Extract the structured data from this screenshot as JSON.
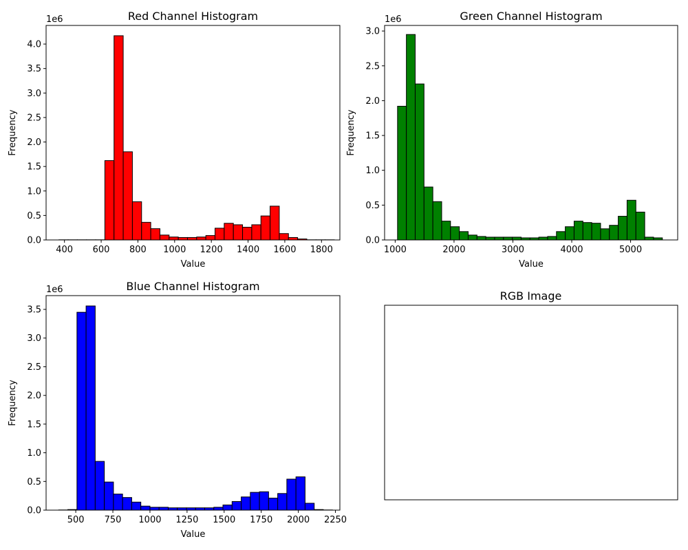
{
  "chart_data": [
    {
      "type": "bar",
      "title": "Red Channel Histogram",
      "xlabel": "Value",
      "ylabel": "Frequency",
      "offset_label": "1e6",
      "color": "#ff0000",
      "edge_color": "#000000",
      "xlim": [
        300,
        1900
      ],
      "ylim": [
        0,
        4.38
      ],
      "xticks": [
        400,
        600,
        800,
        1000,
        1200,
        1400,
        1600,
        1800
      ],
      "yticks": [
        0.0,
        0.5,
        1.0,
        1.5,
        2.0,
        2.5,
        3.0,
        3.5,
        4.0
      ],
      "bin_edges": [
        370,
        420,
        470,
        520,
        570,
        620,
        670,
        720,
        770,
        820,
        870,
        920,
        970,
        1020,
        1070,
        1120,
        1170,
        1220,
        1270,
        1320,
        1370,
        1420,
        1470,
        1520,
        1570,
        1620,
        1670,
        1720,
        1770,
        1820,
        1870
      ],
      "values": [
        0.003,
        0.003,
        0.003,
        0.003,
        0.003,
        1.62,
        4.17,
        1.8,
        0.78,
        0.36,
        0.23,
        0.1,
        0.06,
        0.05,
        0.05,
        0.06,
        0.09,
        0.24,
        0.34,
        0.31,
        0.26,
        0.31,
        0.49,
        0.69,
        0.13,
        0.05,
        0.02,
        0.003,
        0.003,
        0.003
      ]
    },
    {
      "type": "bar",
      "title": "Green Channel Histogram",
      "xlabel": "Value",
      "ylabel": "Frequency",
      "offset_label": "1e6",
      "color": "#008000",
      "edge_color": "#000000",
      "xlim": [
        820,
        5800
      ],
      "ylim": [
        0,
        3.08
      ],
      "xticks": [
        1000,
        2000,
        3000,
        4000,
        5000
      ],
      "yticks": [
        0.0,
        0.5,
        1.0,
        1.5,
        2.0,
        2.5,
        3.0
      ],
      "bin_edges": [
        1040,
        1190,
        1340,
        1490,
        1640,
        1790,
        1940,
        2090,
        2240,
        2390,
        2540,
        2690,
        2840,
        2990,
        3140,
        3290,
        3440,
        3590,
        3740,
        3890,
        4040,
        4190,
        4340,
        4490,
        4640,
        4790,
        4940,
        5090,
        5240,
        5390,
        5540
      ],
      "values": [
        1.92,
        2.95,
        2.24,
        0.76,
        0.55,
        0.27,
        0.19,
        0.12,
        0.07,
        0.05,
        0.04,
        0.04,
        0.04,
        0.04,
        0.03,
        0.03,
        0.04,
        0.05,
        0.12,
        0.19,
        0.27,
        0.25,
        0.24,
        0.16,
        0.21,
        0.34,
        0.57,
        0.4,
        0.04,
        0.03
      ]
    },
    {
      "type": "bar",
      "title": "Blue Channel Histogram",
      "xlabel": "Value",
      "ylabel": "Frequency",
      "offset_label": "1e6",
      "color": "#0000ff",
      "edge_color": "#000000",
      "xlim": [
        300,
        2280
      ],
      "ylim": [
        0,
        3.74
      ],
      "xticks": [
        500,
        750,
        1000,
        1250,
        1500,
        1750,
        2000,
        2250
      ],
      "yticks": [
        0.0,
        0.5,
        1.0,
        1.5,
        2.0,
        2.5,
        3.0,
        3.5
      ],
      "bin_edges": [
        385,
        446.5,
        508,
        569.5,
        631,
        692.5,
        754,
        815.5,
        877,
        938.5,
        1000,
        1061.5,
        1123,
        1184.5,
        1246,
        1307.5,
        1369,
        1430.5,
        1492,
        1553.5,
        1615,
        1676.5,
        1738,
        1799.5,
        1861,
        1922.5,
        1984,
        2045.5,
        2107,
        2168.5,
        2230
      ],
      "values": [
        0.003,
        0.01,
        3.45,
        3.56,
        0.85,
        0.49,
        0.28,
        0.22,
        0.14,
        0.07,
        0.05,
        0.05,
        0.04,
        0.04,
        0.04,
        0.04,
        0.04,
        0.05,
        0.09,
        0.15,
        0.23,
        0.31,
        0.32,
        0.21,
        0.29,
        0.54,
        0.58,
        0.12,
        0.01,
        0.003
      ]
    },
    {
      "type": "table",
      "title": "RGB Image"
    }
  ]
}
